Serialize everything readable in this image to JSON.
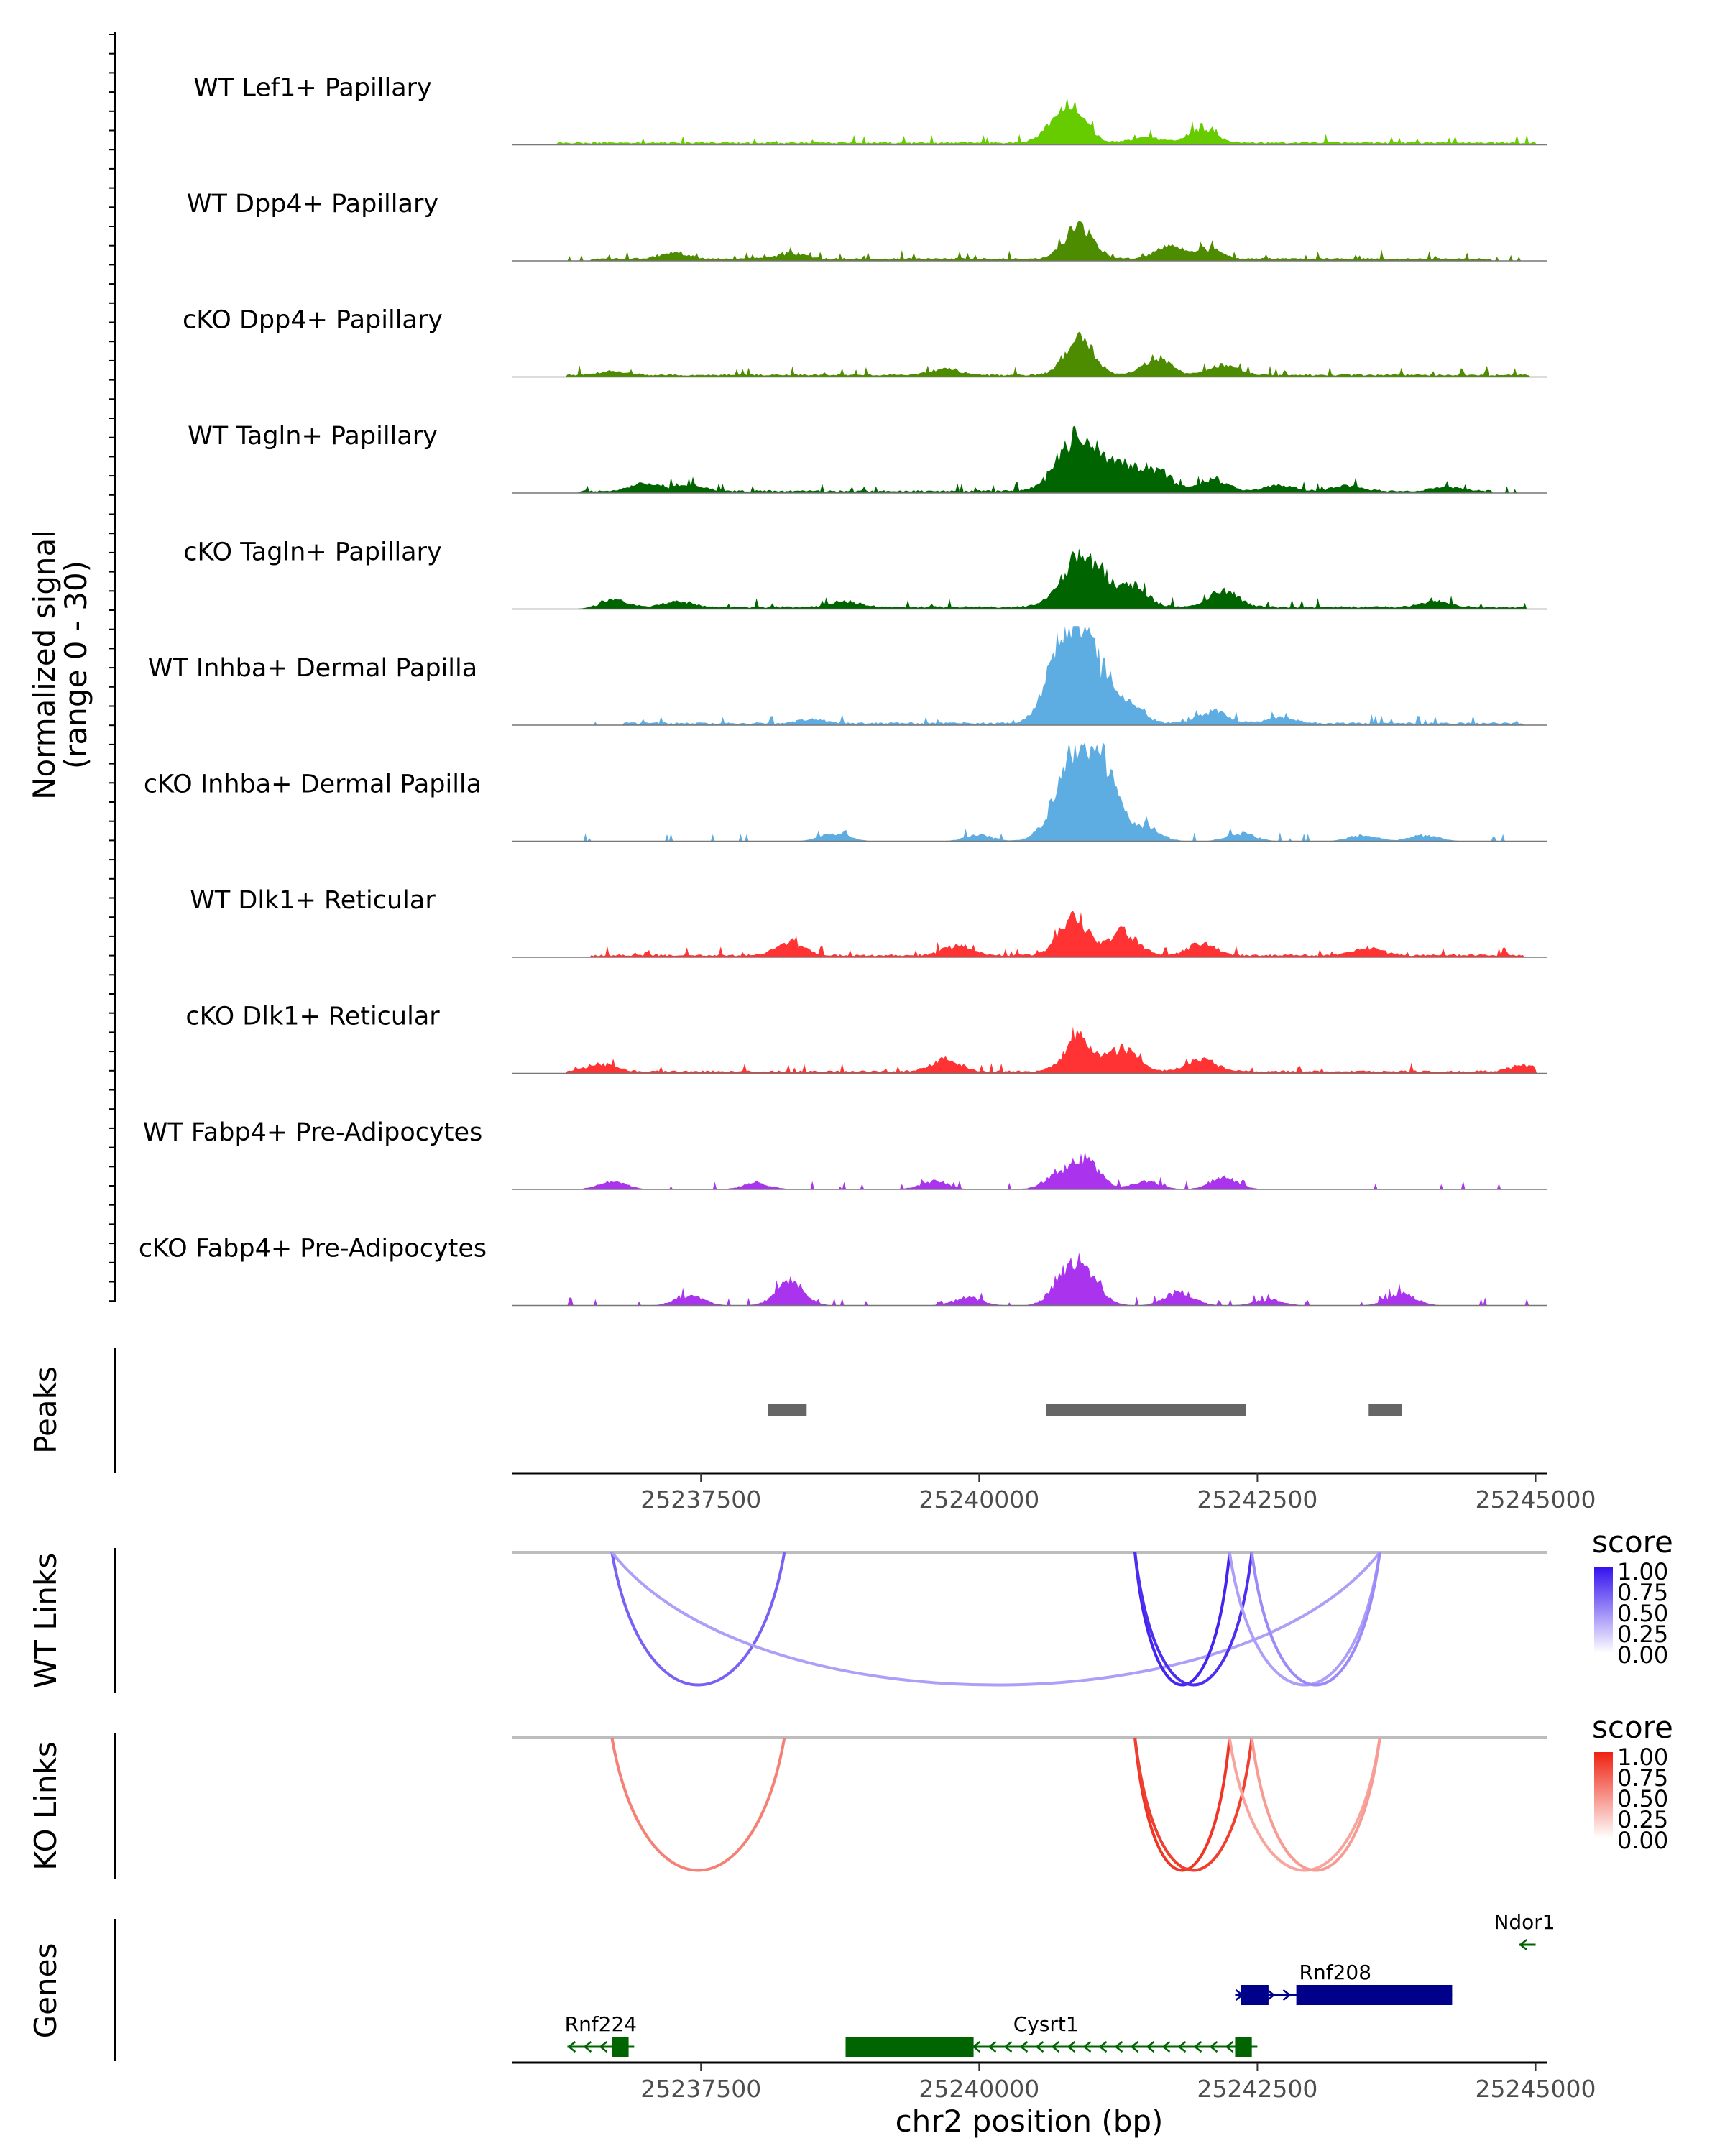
{
  "chart_data": {
    "type": "area",
    "title": "",
    "chromosome": "chr2",
    "xlabel": "chr2 position (bp)",
    "xlim": [
      25235800,
      25245100
    ],
    "x_ticks": [
      25237500,
      25240000,
      25242500,
      25245000
    ],
    "x_tick_labels": [
      "25237500",
      "25240000",
      "25242500",
      "25245000"
    ],
    "coverage": {
      "ylabel_line1": "Normalized signal",
      "ylabel_line2": "(range 0 - 30)",
      "ylim": [
        0,
        30
      ],
      "tracks": [
        {
          "name": "WT Lef1+ Papillary",
          "color": "#66CC00",
          "peaks": [
            [
              25240850,
              15
            ],
            [
              25240700,
              8
            ],
            [
              25242000,
              7
            ],
            [
              25241500,
              3
            ]
          ],
          "bg": [
            [
              25236200,
              25245000
            ]
          ]
        },
        {
          "name": "WT Dpp4+ Papillary",
          "color": "#4D8B00",
          "peaks": [
            [
              25240900,
              17
            ],
            [
              25241700,
              6
            ],
            [
              25242050,
              5
            ],
            [
              25237250,
              3
            ],
            [
              25238300,
              3
            ]
          ],
          "bg": [
            [
              25236500,
              25244600
            ]
          ]
        },
        {
          "name": "cKO Dpp4+ Papillary",
          "color": "#4D8B00",
          "peaks": [
            [
              25240900,
              18
            ],
            [
              25241600,
              8
            ],
            [
              25242200,
              5
            ],
            [
              25239700,
              3
            ],
            [
              25236700,
              2
            ]
          ],
          "bg": [
            [
              25236300,
              25244950
            ]
          ]
        },
        {
          "name": "WT Tagln+ Papillary",
          "color": "#006400",
          "peaks": [
            [
              25240900,
              28
            ],
            [
              25241300,
              12
            ],
            [
              25241600,
              10
            ],
            [
              25242100,
              6
            ],
            [
              25237000,
              4
            ],
            [
              25237400,
              3
            ],
            [
              25242700,
              3
            ],
            [
              25243300,
              3
            ],
            [
              25244200,
              2
            ]
          ],
          "bg": [
            [
              25236400,
              25244600
            ]
          ]
        },
        {
          "name": "cKO Tagln+ Papillary",
          "color": "#006400",
          "peaks": [
            [
              25240950,
              27
            ],
            [
              25241400,
              9
            ],
            [
              25242200,
              8
            ],
            [
              25236700,
              4
            ],
            [
              25237300,
              3
            ],
            [
              25238800,
              3
            ],
            [
              25244100,
              3
            ]
          ],
          "bg": [
            [
              25236600,
              25244900
            ]
          ]
        },
        {
          "name": "WT Inhba+ Dermal Papilla",
          "color": "#5DADE2",
          "peaks": [
            [
              25240920,
              45
            ],
            [
              25240700,
              18
            ],
            [
              25241350,
              8
            ],
            [
              25242100,
              6
            ],
            [
              25238500,
              2
            ],
            [
              25242700,
              3
            ]
          ],
          "bg": [
            [
              25236800,
              25244900
            ]
          ]
        },
        {
          "name": "cKO Inhba+ Dermal Papilla",
          "color": "#5DADE2",
          "peaks": [
            [
              25240900,
              50
            ],
            [
              25241150,
              20
            ],
            [
              25241500,
              7
            ],
            [
              25238700,
              4
            ],
            [
              25240000,
              3
            ],
            [
              25242350,
              4
            ],
            [
              25243450,
              3
            ],
            [
              25244000,
              3
            ]
          ],
          "bg": []
        },
        {
          "name": "WT Dlk1+ Reticular",
          "color": "#FF3333",
          "peaks": [
            [
              25240850,
              20
            ],
            [
              25241300,
              12
            ],
            [
              25238300,
              6
            ],
            [
              25239800,
              5
            ],
            [
              25242000,
              6
            ],
            [
              25243500,
              4
            ]
          ],
          "bg": [
            [
              25236500,
              25244900
            ]
          ]
        },
        {
          "name": "cKO Dlk1+ Reticular",
          "color": "#FF3333",
          "peaks": [
            [
              25240900,
              18
            ],
            [
              25241300,
              12
            ],
            [
              25239700,
              6
            ],
            [
              25242000,
              6
            ],
            [
              25236600,
              4
            ],
            [
              25244900,
              3
            ]
          ],
          "bg": [
            [
              25236300,
              25245000
            ]
          ]
        },
        {
          "name": "WT Fabp4+ Pre-Adipocytes",
          "color": "#AA33EE",
          "peaks": [
            [
              25240950,
              15
            ],
            [
              25240700,
              6
            ],
            [
              25236700,
              4
            ],
            [
              25242200,
              6
            ],
            [
              25241500,
              4
            ],
            [
              25239600,
              4
            ],
            [
              25238000,
              3
            ]
          ],
          "bg": []
        },
        {
          "name": "cKO Fabp4+ Pre-Adipocytes",
          "color": "#AA33EE",
          "peaks": [
            [
              25240800,
              18
            ],
            [
              25238300,
              12
            ],
            [
              25241000,
              10
            ],
            [
              25241800,
              7
            ],
            [
              25237400,
              5
            ],
            [
              25243800,
              6
            ],
            [
              25239900,
              4
            ],
            [
              25242600,
              3
            ]
          ],
          "bg": []
        }
      ]
    },
    "peaks": {
      "label": "Peaks",
      "regions": [
        [
          25238100,
          25238450
        ],
        [
          25240600,
          25242400
        ],
        [
          25243500,
          25243800
        ]
      ]
    },
    "links": [
      {
        "label": "WT Links",
        "legend_title": "score",
        "legend_ticks": [
          "1.00",
          "0.75",
          "0.50",
          "0.25",
          "0.00"
        ],
        "color_high": "#3311EE",
        "color_low": "#FFFFFF",
        "arcs": [
          {
            "start": 25236700,
            "end": 25238250,
            "score": 0.6
          },
          {
            "start": 25236700,
            "end": 25243600,
            "score": 0.3
          },
          {
            "start": 25241400,
            "end": 25242250,
            "score": 0.9
          },
          {
            "start": 25241400,
            "end": 25242450,
            "score": 0.85
          },
          {
            "start": 25242250,
            "end": 25243600,
            "score": 0.3
          },
          {
            "start": 25242450,
            "end": 25243600,
            "score": 0.4
          }
        ]
      },
      {
        "label": "KO Links",
        "legend_title": "score",
        "legend_ticks": [
          "1.00",
          "0.75",
          "0.50",
          "0.25",
          "0.00"
        ],
        "color_high": "#EE2211",
        "color_low": "#FFFFFF",
        "arcs": [
          {
            "start": 25236700,
            "end": 25238250,
            "score": 0.5
          },
          {
            "start": 25241400,
            "end": 25242250,
            "score": 0.9
          },
          {
            "start": 25241400,
            "end": 25242450,
            "score": 0.85
          },
          {
            "start": 25242250,
            "end": 25243600,
            "score": 0.3
          },
          {
            "start": 25242450,
            "end": 25243600,
            "score": 0.35
          }
        ]
      }
    ],
    "genes": {
      "label": "Genes",
      "items": [
        {
          "name": "Rnf224",
          "strand": "-",
          "color": "#006400",
          "start": 25236300,
          "end": 25236900,
          "exons": [
            [
              25236700,
              25236850
            ]
          ],
          "row": 0,
          "label_x": 25236600
        },
        {
          "name": "Cysrt1",
          "strand": "-",
          "color": "#006400",
          "start": 25238800,
          "end": 25242500,
          "exons": [
            [
              25238800,
              25239950
            ],
            [
              25242300,
              25242450
            ]
          ],
          "row": 0,
          "label_x": 25240600
        },
        {
          "name": "Rnf208",
          "strand": "+",
          "color": "#00008B",
          "start": 25242300,
          "end": 25244250,
          "exons": [
            [
              25242350,
              25242600
            ],
            [
              25242850,
              25244250
            ]
          ],
          "row": 1,
          "label_x": 25243200
        },
        {
          "name": "Ndor1",
          "strand": "-",
          "color": "#006400",
          "start": 25244850,
          "end": 25245000,
          "exons": [],
          "row": 2,
          "label_x": 25244900
        }
      ]
    }
  }
}
